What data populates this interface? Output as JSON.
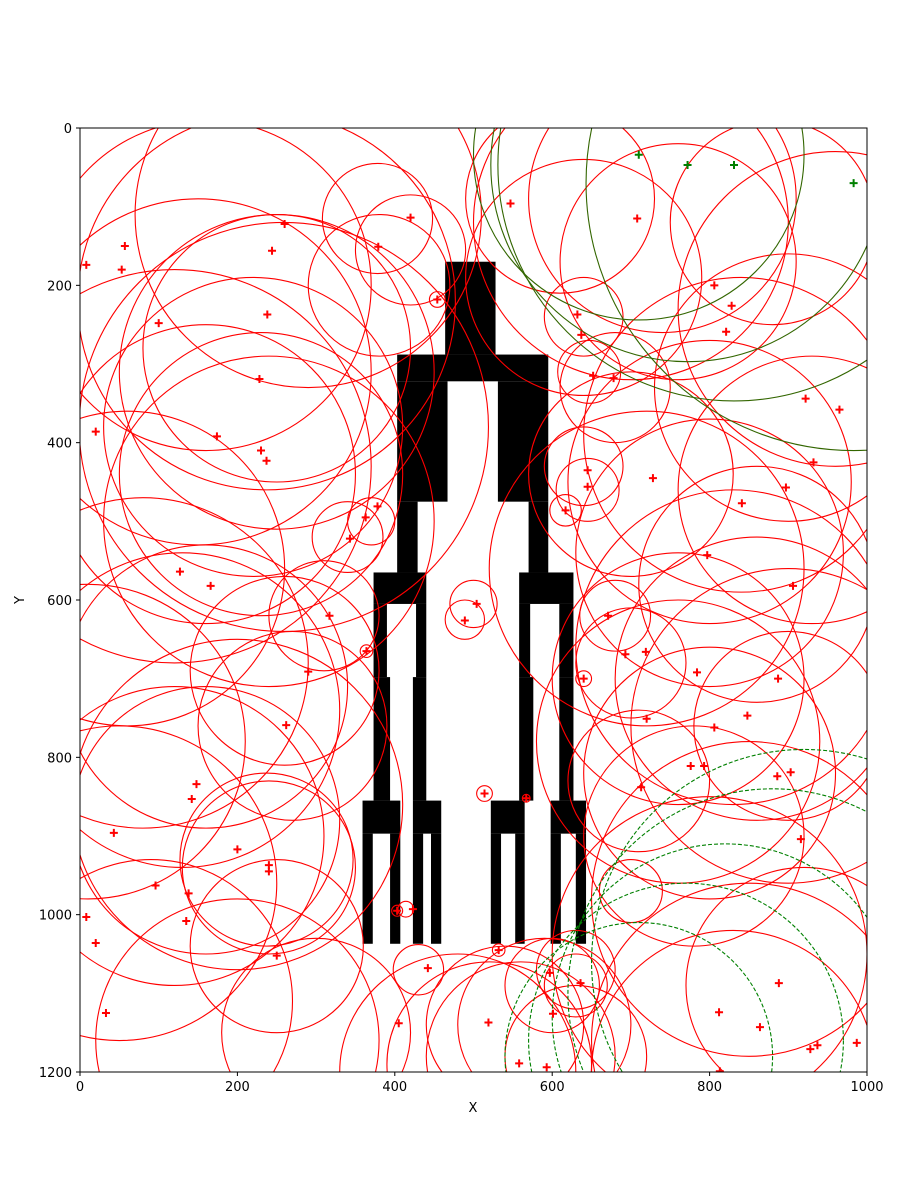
{
  "chart_data": {
    "type": "scatter",
    "title": "",
    "xlabel": "X",
    "ylabel": "Y",
    "xlim": [
      0,
      1000
    ],
    "ylim": [
      1200,
      0
    ],
    "y_inverted": true,
    "grid": false,
    "legend": "none",
    "x_ticks": [
      "0",
      "200",
      "400",
      "600",
      "800",
      "1000"
    ],
    "y_ticks": [
      "0",
      "200",
      "400",
      "600",
      "800",
      "1000",
      "1200"
    ],
    "colors": {
      "red": "#ff0000",
      "green": "#008000",
      "dark_green": "#336600",
      "obstacle": "#000000"
    },
    "obstacle_rects": [
      [
        464,
        170,
        528,
        288
      ],
      [
        403,
        288,
        595,
        322
      ],
      [
        403,
        322,
        467,
        475
      ],
      [
        531,
        322,
        595,
        475
      ],
      [
        403,
        475,
        429,
        565
      ],
      [
        570,
        475,
        595,
        565
      ],
      [
        373,
        565,
        440,
        605
      ],
      [
        558,
        565,
        627,
        605
      ],
      [
        373,
        605,
        390,
        698
      ],
      [
        427,
        605,
        440,
        698
      ],
      [
        558,
        605,
        572,
        698
      ],
      [
        609,
        605,
        627,
        698
      ],
      [
        373,
        698,
        394,
        855
      ],
      [
        423,
        698,
        440,
        855
      ],
      [
        558,
        698,
        576,
        855
      ],
      [
        609,
        698,
        627,
        855
      ],
      [
        359,
        855,
        407,
        897
      ],
      [
        423,
        855,
        459,
        897
      ],
      [
        522,
        855,
        565,
        897
      ],
      [
        598,
        855,
        643,
        897
      ],
      [
        359,
        897,
        372,
        1037
      ],
      [
        394,
        897,
        407,
        1037
      ],
      [
        423,
        897,
        436,
        1037
      ],
      [
        446,
        897,
        459,
        1037
      ],
      [
        522,
        897,
        535,
        1037
      ],
      [
        553,
        897,
        565,
        1037
      ],
      [
        598,
        897,
        611,
        1037
      ],
      [
        630,
        897,
        643,
        1037
      ]
    ],
    "red_points": [
      [
        8,
        174
      ],
      [
        57,
        150
      ],
      [
        53,
        180
      ],
      [
        100,
        248
      ],
      [
        20,
        386
      ],
      [
        260,
        122
      ],
      [
        244,
        156
      ],
      [
        238,
        237
      ],
      [
        228,
        319
      ],
      [
        174,
        392
      ],
      [
        230,
        410
      ],
      [
        237,
        423
      ],
      [
        127,
        564
      ],
      [
        166,
        582
      ],
      [
        343,
        522
      ],
      [
        363,
        495
      ],
      [
        378,
        481
      ],
      [
        379,
        151
      ],
      [
        420,
        114
      ],
      [
        454,
        218
      ],
      [
        547,
        96
      ],
      [
        632,
        237
      ],
      [
        637,
        263
      ],
      [
        652,
        315
      ],
      [
        678,
        318
      ],
      [
        708,
        115
      ],
      [
        806,
        200
      ],
      [
        828,
        226
      ],
      [
        821,
        259
      ],
      [
        922,
        344
      ],
      [
        965,
        358
      ],
      [
        932,
        425
      ],
      [
        897,
        457
      ],
      [
        841,
        477
      ],
      [
        728,
        445
      ],
      [
        645,
        435
      ],
      [
        645,
        456
      ],
      [
        617,
        486
      ],
      [
        504,
        605
      ],
      [
        489,
        626
      ],
      [
        364,
        665
      ],
      [
        317,
        620
      ],
      [
        290,
        691
      ],
      [
        262,
        759
      ],
      [
        671,
        620
      ],
      [
        693,
        669
      ],
      [
        719,
        666
      ],
      [
        640,
        700
      ],
      [
        720,
        751
      ],
      [
        784,
        692
      ],
      [
        806,
        762
      ],
      [
        797,
        543
      ],
      [
        906,
        582
      ],
      [
        887,
        700
      ],
      [
        848,
        747
      ],
      [
        776,
        811
      ],
      [
        793,
        811
      ],
      [
        903,
        819
      ],
      [
        886,
        824
      ],
      [
        713,
        838
      ],
      [
        916,
        904
      ],
      [
        567,
        852
      ],
      [
        514,
        846
      ],
      [
        148,
        834
      ],
      [
        142,
        853
      ],
      [
        43,
        896
      ],
      [
        200,
        917
      ],
      [
        96,
        963
      ],
      [
        138,
        973
      ],
      [
        8,
        1003
      ],
      [
        20,
        1036
      ],
      [
        135,
        1008
      ],
      [
        240,
        937
      ],
      [
        240,
        945
      ],
      [
        250,
        1052
      ],
      [
        33,
        1125
      ],
      [
        403,
        995
      ],
      [
        423,
        993
      ],
      [
        442,
        1068
      ],
      [
        405,
        1138
      ],
      [
        519,
        1137
      ],
      [
        532,
        1045
      ],
      [
        558,
        1189
      ],
      [
        593,
        1194
      ],
      [
        597,
        1074
      ],
      [
        601,
        1126
      ],
      [
        636,
        1087
      ],
      [
        812,
        1124
      ],
      [
        864,
        1143
      ],
      [
        888,
        1087
      ],
      [
        928,
        1171
      ],
      [
        937,
        1166
      ],
      [
        987,
        1163
      ],
      [
        813,
        1199
      ]
    ],
    "green_points": [
      [
        710,
        34
      ],
      [
        772,
        47
      ],
      [
        831,
        47
      ],
      [
        983,
        70
      ]
    ],
    "red_circles": [
      [
        237,
        220,
        240
      ],
      [
        259,
        380,
        260
      ],
      [
        290,
        110,
        220
      ],
      [
        160,
        200,
        210
      ],
      [
        250,
        280,
        170
      ],
      [
        250,
        310,
        200
      ],
      [
        220,
        380,
        190
      ],
      [
        230,
        440,
        180
      ],
      [
        120,
        430,
        250
      ],
      [
        150,
        310,
        220
      ],
      [
        160,
        440,
        190
      ],
      [
        240,
        500,
        210
      ],
      [
        130,
        740,
        200
      ],
      [
        160,
        710,
        180
      ],
      [
        80,
        680,
        210
      ],
      [
        260,
        690,
        120
      ],
      [
        270,
        760,
        120
      ],
      [
        310,
        620,
        70
      ],
      [
        340,
        520,
        45
      ],
      [
        370,
        500,
        30
      ],
      [
        378,
        115,
        70
      ],
      [
        420,
        155,
        70
      ],
      [
        380,
        200,
        90
      ],
      [
        454,
        218,
        10
      ],
      [
        200,
        860,
        210
      ],
      [
        120,
        900,
        190
      ],
      [
        160,
        880,
        170
      ],
      [
        240,
        940,
        110
      ],
      [
        237,
        930,
        110
      ],
      [
        250,
        1040,
        110
      ],
      [
        90,
        1110,
        180
      ],
      [
        200,
        1160,
        180
      ],
      [
        300,
        1150,
        120
      ],
      [
        430,
        1070,
        32
      ],
      [
        414,
        993,
        10
      ],
      [
        403,
        995,
        7
      ],
      [
        500,
        605,
        30
      ],
      [
        489,
        625,
        25
      ],
      [
        364,
        665,
        8
      ],
      [
        514,
        846,
        10
      ],
      [
        567,
        852,
        5
      ],
      [
        532,
        1045,
        8
      ],
      [
        480,
        1200,
        150
      ],
      [
        520,
        1190,
        130
      ],
      [
        590,
        1140,
        110
      ],
      [
        600,
        1090,
        60
      ],
      [
        630,
        1070,
        50
      ],
      [
        630,
        1090,
        40
      ],
      [
        560,
        1180,
        120
      ],
      [
        630,
        1180,
        90
      ],
      [
        540,
        1140,
        100
      ],
      [
        640,
        190,
        150
      ],
      [
        610,
        90,
        120
      ],
      [
        740,
        90,
        170
      ],
      [
        640,
        240,
        50
      ],
      [
        647,
        310,
        40
      ],
      [
        680,
        330,
        70
      ],
      [
        700,
        120,
        200
      ],
      [
        760,
        170,
        150
      ],
      [
        640,
        430,
        50
      ],
      [
        645,
        460,
        40
      ],
      [
        617,
        486,
        20
      ],
      [
        700,
        440,
        130
      ],
      [
        800,
        450,
        180
      ],
      [
        840,
        390,
        200
      ],
      [
        900,
        330,
        170
      ],
      [
        930,
        460,
        170
      ],
      [
        800,
        540,
        170
      ],
      [
        680,
        620,
        45
      ],
      [
        700,
        680,
        70
      ],
      [
        640,
        700,
        10
      ],
      [
        760,
        700,
        160
      ],
      [
        830,
        660,
        200
      ],
      [
        860,
        700,
        180
      ],
      [
        900,
        760,
        200
      ],
      [
        760,
        780,
        180
      ],
      [
        800,
        820,
        160
      ],
      [
        710,
        830,
        90
      ],
      [
        700,
        970,
        40
      ],
      [
        780,
        900,
        140
      ],
      [
        850,
        980,
        200
      ],
      [
        800,
        1050,
        200
      ],
      [
        850,
        1160,
        200
      ],
      [
        830,
        1200,
        180
      ],
      [
        920,
        1090,
        150
      ],
      [
        900,
        760,
        120
      ],
      [
        860,
        580,
        150
      ],
      [
        720,
        560,
        200
      ],
      [
        960,
        230,
        200
      ],
      [
        880,
        120,
        130
      ],
      [
        50,
        960,
        200
      ],
      [
        10,
        780,
        200
      ],
      [
        60,
        560,
        200
      ]
    ],
    "green_circles": [
      [
        710,
        34,
        210
      ],
      [
        772,
        47,
        250
      ],
      [
        831,
        47,
        300
      ],
      [
        983,
        70,
        340
      ]
    ],
    "green_dashed_circles": [
      [
        920,
        1060,
        270
      ],
      [
        880,
        1100,
        260
      ],
      [
        820,
        1130,
        220
      ],
      [
        770,
        1160,
        200
      ],
      [
        710,
        1180,
        170
      ]
    ]
  }
}
